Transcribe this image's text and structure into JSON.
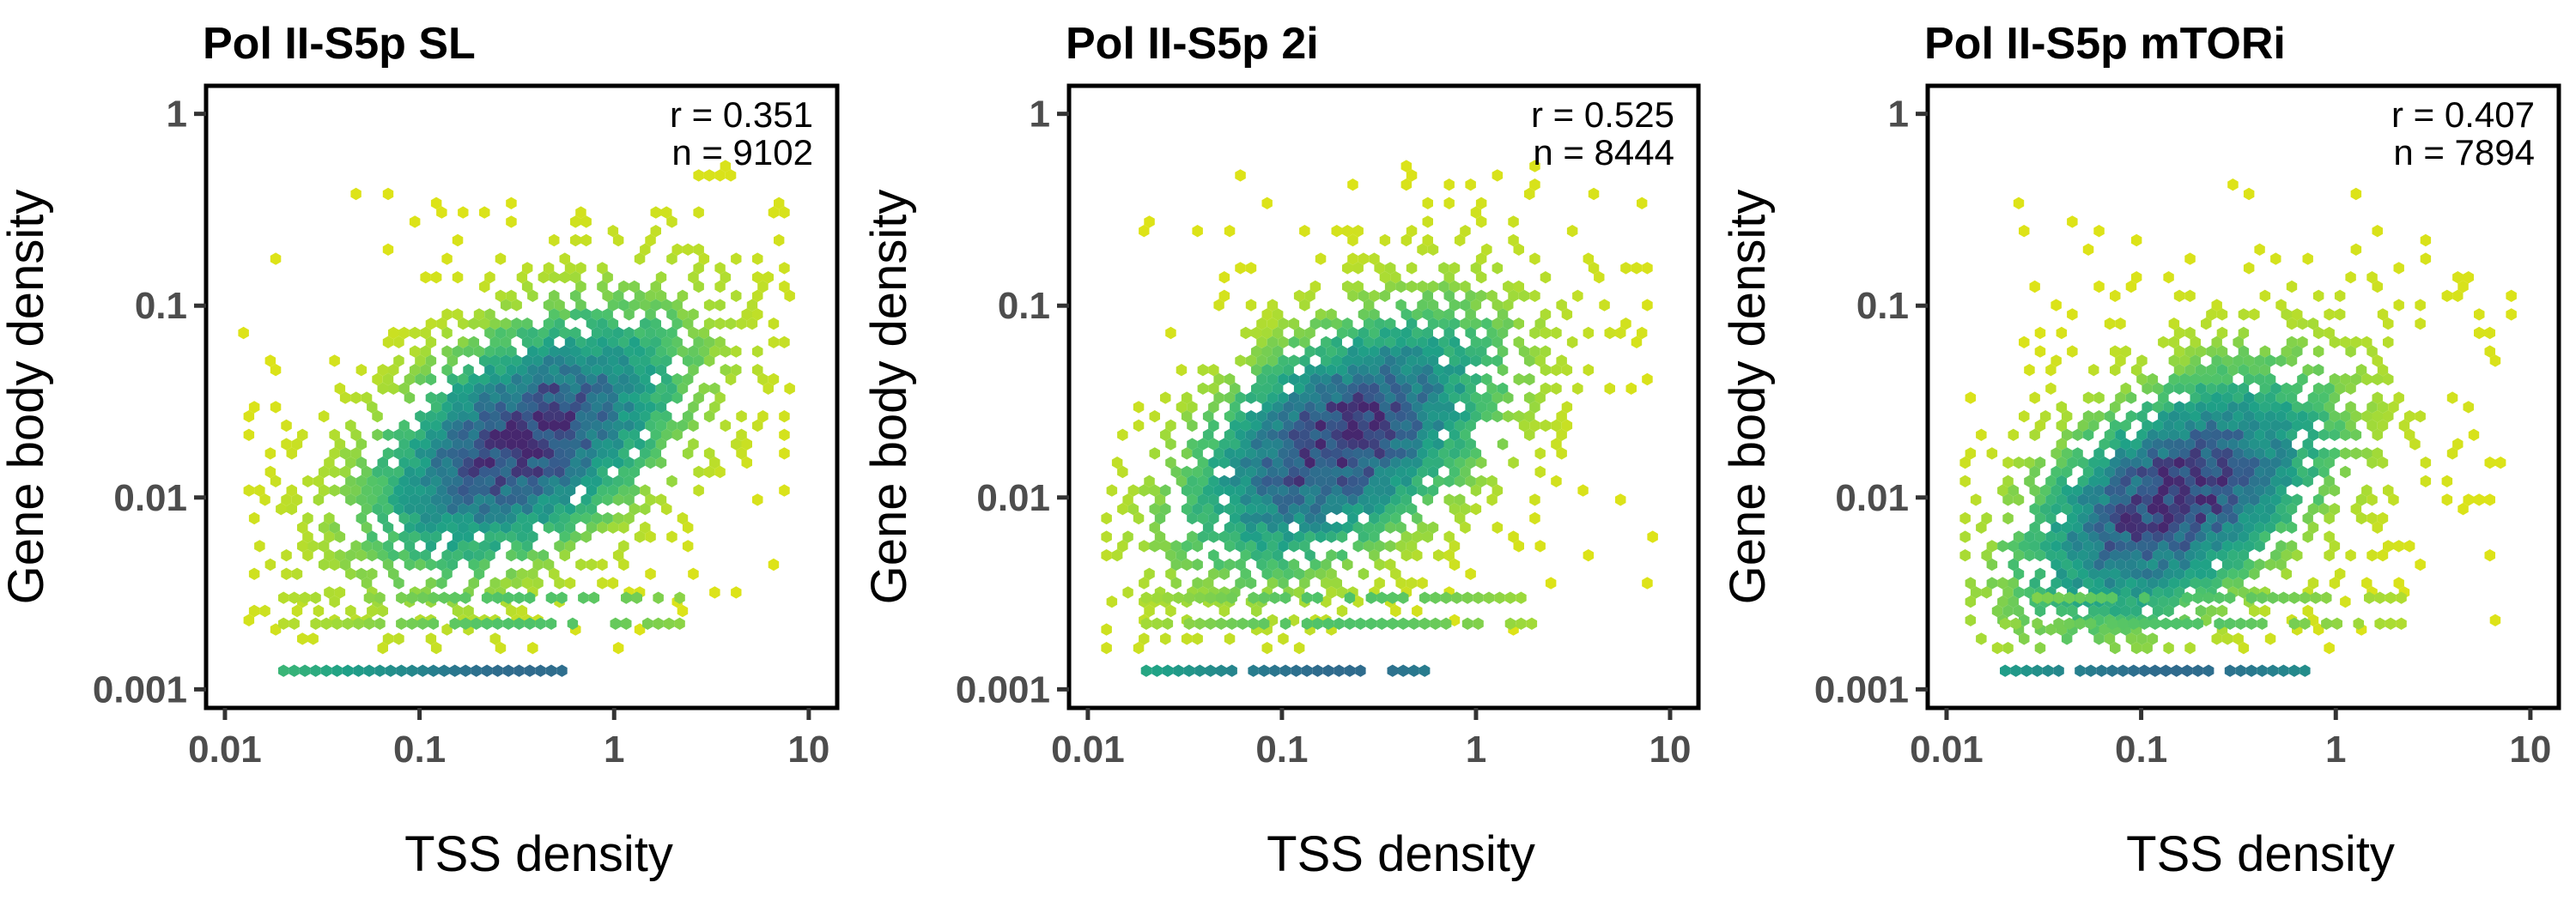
{
  "chart_data": [
    {
      "type": "hexbin",
      "title": "Pol II-S5p SL",
      "xlabel": "TSS density",
      "ylabel": "Gene body density",
      "x_scale": "log10",
      "y_scale": "log10",
      "xlim": [
        0.008,
        14
      ],
      "ylim": [
        0.0008,
        1.4
      ],
      "x_ticks": [
        "0.01",
        "0.1",
        "1",
        "10"
      ],
      "y_ticks": [
        "1",
        "0.1",
        "0.01",
        "0.001"
      ],
      "annotation": {
        "r": "r = 0.351",
        "n": "n = 9102"
      },
      "density_center": {
        "x": 0.35,
        "y": 0.02
      },
      "colorscale": "viridis"
    },
    {
      "type": "hexbin",
      "title": "Pol II-S5p 2i",
      "xlabel": "TSS density",
      "ylabel": "Gene body density",
      "x_scale": "log10",
      "y_scale": "log10",
      "xlim": [
        0.008,
        14
      ],
      "ylim": [
        0.0008,
        1.4
      ],
      "x_ticks": [
        "0.01",
        "0.1",
        "1",
        "10"
      ],
      "y_ticks": [
        "1",
        "0.1",
        "0.01",
        "0.001"
      ],
      "annotation": {
        "r": "r = 0.525",
        "n": "n = 8444"
      },
      "density_center": {
        "x": 0.2,
        "y": 0.02
      },
      "colorscale": "viridis"
    },
    {
      "type": "hexbin",
      "title": "Pol II-S5p mTORi",
      "xlabel": "TSS density",
      "ylabel": "Gene body density",
      "x_scale": "log10",
      "y_scale": "log10",
      "xlim": [
        0.008,
        14
      ],
      "ylim": [
        0.0008,
        1.4
      ],
      "x_ticks": [
        "0.01",
        "0.1",
        "1",
        "10"
      ],
      "y_ticks": [
        "1",
        "0.1",
        "0.01",
        "0.001"
      ],
      "annotation": {
        "r": "r = 0.407",
        "n": "n = 7894"
      },
      "density_center": {
        "x": 0.15,
        "y": 0.01
      },
      "colorscale": "viridis"
    }
  ]
}
